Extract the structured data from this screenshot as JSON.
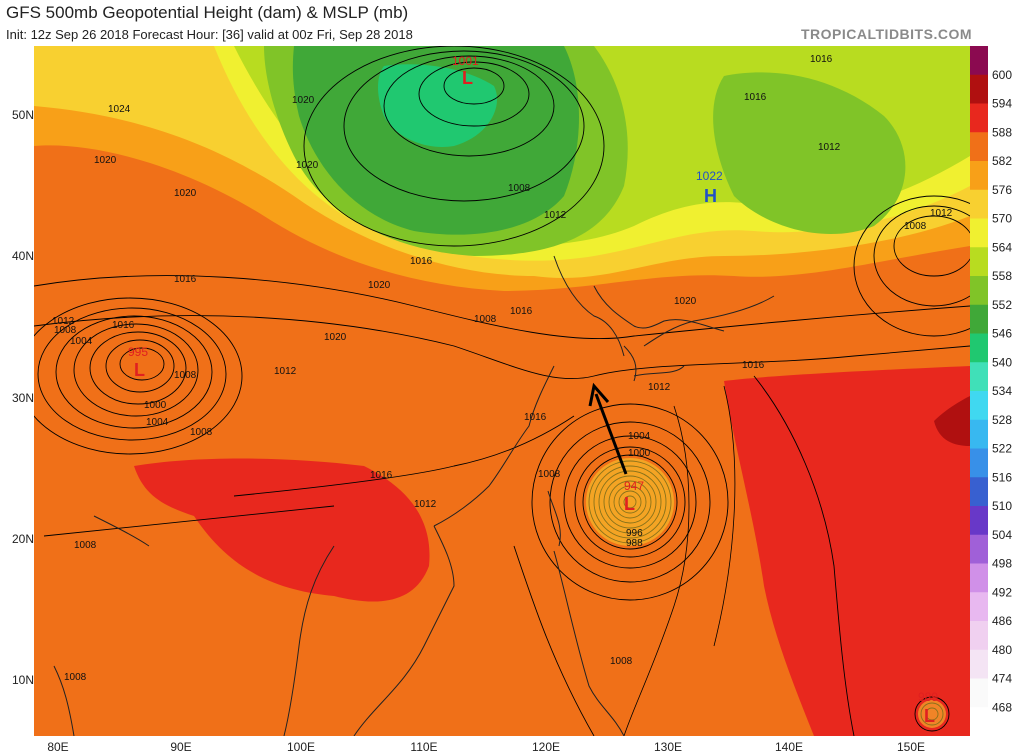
{
  "header": {
    "title": "GFS 500mb Geopotential Height (dam) & MSLP (mb)",
    "subtitle": "Init: 12z Sep 26 2018   Forecast Hour: [36]   valid at 00z Fri, Sep 28 2018",
    "brand": "TROPICALTIDBITS.COM"
  },
  "axes": {
    "lat_labels": [
      "50N",
      "40N",
      "30N",
      "20N",
      "10N"
    ],
    "lon_labels": [
      "80E",
      "90E",
      "100E",
      "110E",
      "120E",
      "130E",
      "140E",
      "150E"
    ]
  },
  "colorbar": {
    "labels": [
      "600",
      "594",
      "588",
      "582",
      "576",
      "570",
      "564",
      "558",
      "552",
      "546",
      "540",
      "534",
      "528",
      "522",
      "516",
      "510",
      "504",
      "498",
      "492",
      "486",
      "480",
      "474",
      "468"
    ],
    "colors": [
      "#8b0a50",
      "#b01010",
      "#e8281e",
      "#f07018",
      "#f8a018",
      "#f8d030",
      "#f0f030",
      "#b8dc20",
      "#80c428",
      "#40a838",
      "#20c870",
      "#40e0b8",
      "#40d8f0",
      "#38b8f0",
      "#3890e8",
      "#3860d0",
      "#6838c8",
      "#a060d8",
      "#d090e8",
      "#e8b8f0",
      "#f0d0f0",
      "#f4e4f4",
      "#fafafa",
      "#ffffff"
    ]
  },
  "pressure_systems": [
    {
      "type": "L",
      "value": "1001",
      "color": "#e02020"
    },
    {
      "type": "H",
      "value": "1022",
      "color": "#2050c8"
    },
    {
      "type": "L",
      "value": "995",
      "color": "#e02020"
    },
    {
      "type": "L",
      "value": "947",
      "color": "#e02020"
    },
    {
      "type": "L",
      "value": "989",
      "color": "#e02020"
    }
  ],
  "isobar_labels": [
    "1024",
    "1020",
    "1020",
    "1016",
    "1020",
    "1020",
    "1008",
    "1012",
    "1016",
    "1020",
    "1016",
    "1020",
    "1016",
    "1012",
    "1008",
    "1004",
    "1012",
    "1008",
    "1004",
    "1012",
    "1020",
    "1016",
    "1016",
    "1016",
    "1012",
    "1004",
    "1000",
    "1000",
    "1008",
    "1008",
    "1012",
    "1016",
    "1008",
    "1016",
    "1012",
    "1008",
    "1008",
    "1008",
    "1008",
    "996",
    "988"
  ],
  "annotation": {
    "arrow_color": "#000000"
  }
}
